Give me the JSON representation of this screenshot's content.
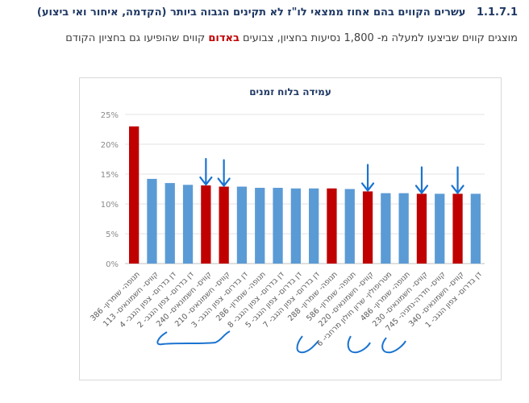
{
  "heading": {
    "number": "1.1.7.1",
    "title": "עשרים הקווים בהם אחוז ממצאי לו\"ז לא תקינים הגבוה ביותר (הקדמה, איחור ואי ביצוע)"
  },
  "description": {
    "part1": "מוצגים קווים שביצעו למעלה מ- 1,800 נסיעות בחציון, צבועים ",
    "highlight": "באדום",
    "part2": " קווים שהופיעו גם בחציון הקודם"
  },
  "colors": {
    "highlight": "#c00000",
    "bar_red": "#c00000",
    "bar_blue": "#5b9bd5",
    "annotation": "#1a73d0"
  },
  "chart_data": {
    "type": "bar",
    "title": "עמידה בלוח זמנים",
    "ylim": [
      0,
      25
    ],
    "yticks": [
      "0%",
      "5%",
      "10%",
      "15%",
      "20%",
      "25%"
    ],
    "grid": true,
    "categories": [
      "תנופה- שומרון- 386",
      "קווים- חשמונאים- 113",
      "דן בדרום- צפון הנגב- 4",
      "דן בדרום- צפון הנגב- 2",
      "קווים- חשמונאים- 240",
      "קווים- חשמונאים- 210",
      "דן בדרום- צפון הנגב- 3",
      "תנופה- שומרון- 286",
      "דן בדרום- צפון הנגב- 8",
      "דן בדרום- צפון הנגב- 5",
      "דן בדרום- צפון הנגב- 7",
      "תנופה- שומרון- 288",
      "תנופה- שומרון- 586",
      "קווים- חשמונאים- 220",
      "מטרופולין- שרון חולון מרחבי- 6",
      "תנופה- שומרון- 486",
      "קווים- חשמונאים- 230",
      "קווים- חדרה-נתניה- 745",
      "קווים- חשמונאים- 340",
      "דן בדרום- צפון הנגב- 1"
    ],
    "values": [
      23.0,
      14.2,
      13.5,
      13.2,
      13.1,
      12.9,
      12.9,
      12.7,
      12.7,
      12.6,
      12.6,
      12.6,
      12.5,
      12.1,
      11.8,
      11.8,
      11.7,
      11.7,
      11.7,
      11.7
    ],
    "highlighted": [
      true,
      false,
      false,
      false,
      true,
      true,
      false,
      false,
      false,
      false,
      false,
      true,
      false,
      true,
      false,
      false,
      true,
      false,
      true,
      false
    ]
  }
}
